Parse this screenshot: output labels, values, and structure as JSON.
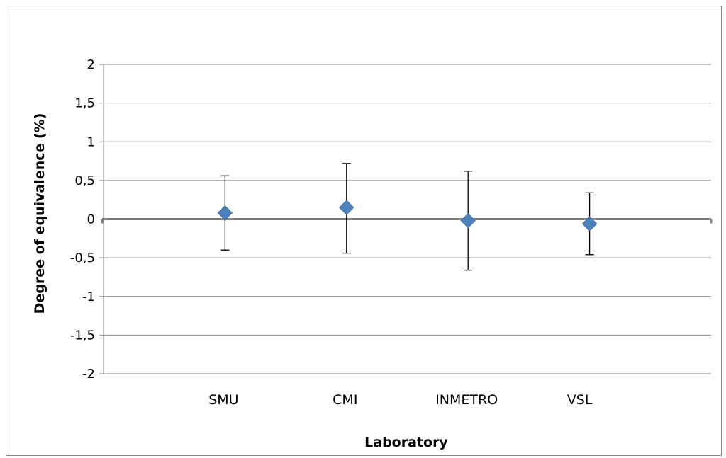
{
  "chart_data": {
    "type": "scatter",
    "title": "",
    "xlabel": "Laboratory",
    "ylabel": "Degree of equivalence (%)",
    "ylim": [
      -2,
      2
    ],
    "yticks": [
      2,
      1.5,
      1,
      0.5,
      0,
      -0.5,
      -1,
      -1.5,
      -2
    ],
    "ytick_labels": [
      "2",
      "1,5",
      "1",
      "0,5",
      "0",
      "-0,5",
      "-1",
      "-1,5",
      "-2"
    ],
    "grid": true,
    "legend": "none",
    "categories": [
      "SMU",
      "CMI",
      "INMETRO",
      "VSL"
    ],
    "series": [
      {
        "values": [
          0.08,
          0.15,
          -0.02,
          -0.06
        ],
        "error_upper": [
          0.56,
          0.72,
          0.62,
          0.34
        ],
        "error_lower": [
          -0.4,
          -0.44,
          -0.66,
          -0.46
        ],
        "marker": "diamond",
        "color": "#4f81bd"
      }
    ]
  }
}
